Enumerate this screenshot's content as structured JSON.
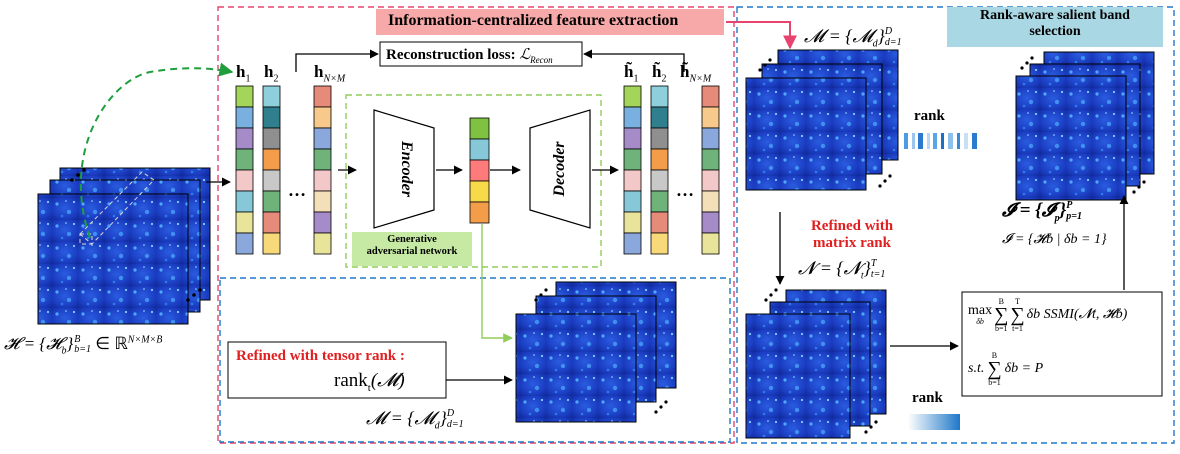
{
  "titles": {
    "feature_extraction": "Information-centralized feature extraction",
    "band_selection_l1": "Rank-aware salient band",
    "band_selection_l2": "selection"
  },
  "loss": {
    "text": "Reconstruction loss:",
    "symbol": "ℒ",
    "sub": "Recon"
  },
  "network": {
    "encoder": "Encoder",
    "decoder": "Decoder",
    "gan_l1": "Generative",
    "gan_l2": "adversarial network"
  },
  "features": {
    "h1": "h",
    "h1_sub": "1",
    "h2": "h",
    "h2_sub": "2",
    "hnm": "h",
    "hnm_sub": "N×M",
    "ht1": "h̃",
    "ht1_sub": "1",
    "ht2": "h̃",
    "ht2_sub": "2",
    "htnm": "h̃",
    "htnm_sub": "N×M",
    "dots": "…"
  },
  "input_formula": {
    "main": "𝓗 = {𝓗",
    "sub_b": "b",
    "close": "}",
    "sup_B": "B",
    "sub_b1": "b=1",
    "rest": " ∈ ℝ",
    "sup_dim": "N×M×B"
  },
  "tensor_rank": {
    "title": "Refined with tensor rank :",
    "expr": "rank",
    "sub": "t",
    "arg": "(𝓜)"
  },
  "m_formula": {
    "lhs": "𝓜 = {𝓜",
    "sub_d": "d",
    "close": "}",
    "sup": "D",
    "sub_range": "d=1"
  },
  "matrix_rank": {
    "title_l1": "Refined with",
    "title_l2": "matrix rank"
  },
  "n_formula": {
    "lhs": "𝓝 = {𝓝",
    "sub_t": "t",
    "close": "}",
    "sup": "T",
    "sub_range": "t=1"
  },
  "rank_label": "rank",
  "optimization": {
    "max": "max",
    "max_sub": "δb",
    "sum1_top": "B",
    "sum1_bot": "b=1",
    "sum2_top": "T",
    "sum2_bot": "t=1",
    "term": "δb SSMI(𝓝t, 𝓗b)",
    "st": "s.t.",
    "sum3_top": "B",
    "sum3_bot": "b=1",
    "constraint": "δb = P"
  },
  "i_formula": {
    "lhs": "𝓘 = {𝓘",
    "sub_p": "p",
    "close": "}",
    "sup": "P",
    "sub_range": "p=1"
  },
  "i_def": "𝓘 = {𝓗b | δb = 1}",
  "colors": {
    "pink_box": "#e8436e",
    "blue_box": "#1e78c8",
    "green_dash": "#8fce5a",
    "green_arrow": "#1e9e3c",
    "title_red_fill": "#f7a8a8",
    "title_cyan_fill": "#a9d8e4",
    "cube_blue": "#1f3fbf",
    "feature_cells_1": [
      "#a3d55a",
      "#7ab0e0",
      "#a58cc8",
      "#6fb37a",
      "#f3c8c8",
      "#86c8d8",
      "#e8e49a",
      "#8ba8dc"
    ],
    "feature_cells_2": [
      "#8ecfdc",
      "#2f7f8f",
      "#8f8f8f",
      "#f39c4a",
      "#c8c8c8",
      "#6fb37a",
      "#e68a7a",
      "#f7d97a"
    ],
    "feature_cells_n": [
      "#e68a7a",
      "#f7c98a",
      "#8ba8dc",
      "#6fb37a",
      "#f3c8c8",
      "#f3e0b8",
      "#a58cc8",
      "#e8e49a"
    ],
    "latent_cells": [
      "#7fc241",
      "#86c8d8",
      "#ff7a7a",
      "#f7d94a",
      "#f39c4a"
    ]
  }
}
